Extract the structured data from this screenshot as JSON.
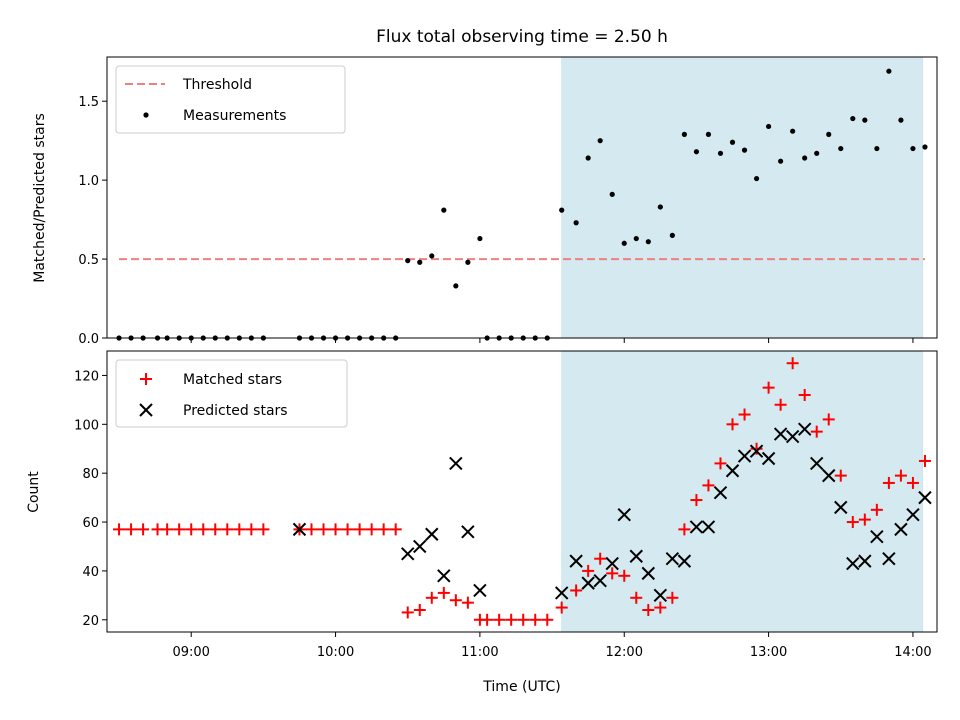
{
  "chart_data": [
    {
      "type": "scatter",
      "title": "Flux total observing time = 2.50 h",
      "xlabel": "",
      "ylabel": "Matched/Predicted stars",
      "xlim": [
        "08:25",
        "14:10"
      ],
      "ylim": [
        0,
        1.78
      ],
      "yticks": [
        0.0,
        0.5,
        1.0,
        1.5
      ],
      "ytick_labels": [
        "0.0",
        "0.5",
        "1.0",
        "1.5"
      ],
      "grid": false,
      "legend_position": "top-left",
      "shaded_region": {
        "x_start": "11:34",
        "x_end": "14:04",
        "color": "#d4eaf0"
      },
      "threshold": {
        "name": "Threshold",
        "value": 0.5,
        "x_start": "08:30",
        "x_end": "14:05",
        "color": "#f08080",
        "style": "dashed"
      },
      "series": [
        {
          "name": "Measurements",
          "color": "#000000",
          "marker": "dot",
          "points": [
            [
              "08:30",
              0
            ],
            [
              "08:35",
              0
            ],
            [
              "08:40",
              0
            ],
            [
              "08:46",
              0
            ],
            [
              "08:50",
              0
            ],
            [
              "08:55",
              0
            ],
            [
              "09:00",
              0
            ],
            [
              "09:05",
              0
            ],
            [
              "09:10",
              0
            ],
            [
              "09:15",
              0
            ],
            [
              "09:20",
              0
            ],
            [
              "09:25",
              0
            ],
            [
              "09:30",
              0
            ],
            [
              "09:45",
              0
            ],
            [
              "09:50",
              0
            ],
            [
              "09:55",
              0
            ],
            [
              "10:00",
              0
            ],
            [
              "10:05",
              0
            ],
            [
              "10:10",
              0
            ],
            [
              "10:15",
              0
            ],
            [
              "10:20",
              0
            ],
            [
              "10:25",
              0
            ],
            [
              "10:30",
              0.49
            ],
            [
              "10:35",
              0.48
            ],
            [
              "10:40",
              0.52
            ],
            [
              "10:45",
              0.81
            ],
            [
              "10:50",
              0.33
            ],
            [
              "10:55",
              0.48
            ],
            [
              "11:00",
              0.63
            ],
            [
              "11:03",
              0
            ],
            [
              "11:08",
              0
            ],
            [
              "11:13",
              0
            ],
            [
              "11:18",
              0
            ],
            [
              "11:23",
              0
            ],
            [
              "11:28",
              0
            ],
            [
              "11:34",
              0.81
            ],
            [
              "11:40",
              0.73
            ],
            [
              "11:45",
              1.14
            ],
            [
              "11:50",
              1.25
            ],
            [
              "11:55",
              0.91
            ],
            [
              "12:00",
              0.6
            ],
            [
              "12:05",
              0.63
            ],
            [
              "12:10",
              0.61
            ],
            [
              "12:15",
              0.83
            ],
            [
              "12:20",
              0.65
            ],
            [
              "12:25",
              1.29
            ],
            [
              "12:30",
              1.18
            ],
            [
              "12:35",
              1.29
            ],
            [
              "12:40",
              1.17
            ],
            [
              "12:45",
              1.24
            ],
            [
              "12:50",
              1.19
            ],
            [
              "12:55",
              1.01
            ],
            [
              "13:00",
              1.34
            ],
            [
              "13:05",
              1.12
            ],
            [
              "13:10",
              1.31
            ],
            [
              "13:15",
              1.14
            ],
            [
              "13:20",
              1.17
            ],
            [
              "13:25",
              1.29
            ],
            [
              "13:30",
              1.2
            ],
            [
              "13:35",
              1.39
            ],
            [
              "13:40",
              1.38
            ],
            [
              "13:45",
              1.2
            ],
            [
              "13:50",
              1.69
            ],
            [
              "13:55",
              1.38
            ],
            [
              "14:00",
              1.2
            ],
            [
              "14:05",
              1.21
            ]
          ]
        }
      ]
    },
    {
      "type": "scatter",
      "title": "",
      "xlabel": "Time (UTC)",
      "ylabel": "Count",
      "xlim": [
        "08:25",
        "14:10"
      ],
      "ylim": [
        15,
        130
      ],
      "yticks": [
        20,
        40,
        60,
        80,
        100,
        120
      ],
      "ytick_labels": [
        "20",
        "40",
        "60",
        "80",
        "100",
        "120"
      ],
      "xticks": [
        "09:00",
        "10:00",
        "11:00",
        "12:00",
        "13:00",
        "14:00"
      ],
      "xtick_labels": [
        "09:00",
        "10:00",
        "11:00",
        "12:00",
        "13:00",
        "14:00"
      ],
      "grid": false,
      "legend_position": "top-left",
      "shaded_region": {
        "x_start": "11:34",
        "x_end": "14:04",
        "color": "#d4eaf0"
      },
      "series": [
        {
          "name": "Matched stars",
          "color": "#ff0000",
          "marker": "plus",
          "points": [
            [
              "08:30",
              57
            ],
            [
              "08:35",
              57
            ],
            [
              "08:40",
              57
            ],
            [
              "08:46",
              57
            ],
            [
              "08:50",
              57
            ],
            [
              "08:55",
              57
            ],
            [
              "09:00",
              57
            ],
            [
              "09:05",
              57
            ],
            [
              "09:10",
              57
            ],
            [
              "09:15",
              57
            ],
            [
              "09:20",
              57
            ],
            [
              "09:25",
              57
            ],
            [
              "09:30",
              57
            ],
            [
              "09:45",
              57
            ],
            [
              "09:50",
              57
            ],
            [
              "09:55",
              57
            ],
            [
              "10:00",
              57
            ],
            [
              "10:05",
              57
            ],
            [
              "10:10",
              57
            ],
            [
              "10:15",
              57
            ],
            [
              "10:20",
              57
            ],
            [
              "10:25",
              57
            ],
            [
              "10:30",
              23
            ],
            [
              "10:35",
              24
            ],
            [
              "10:40",
              29
            ],
            [
              "10:45",
              31
            ],
            [
              "10:50",
              28
            ],
            [
              "10:55",
              27
            ],
            [
              "11:00",
              20
            ],
            [
              "11:03",
              20
            ],
            [
              "11:08",
              20
            ],
            [
              "11:13",
              20
            ],
            [
              "11:18",
              20
            ],
            [
              "11:23",
              20
            ],
            [
              "11:28",
              20
            ],
            [
              "11:34",
              25
            ],
            [
              "11:40",
              32
            ],
            [
              "11:45",
              40
            ],
            [
              "11:50",
              45
            ],
            [
              "11:55",
              39
            ],
            [
              "12:00",
              38
            ],
            [
              "12:05",
              29
            ],
            [
              "12:10",
              24
            ],
            [
              "12:15",
              25
            ],
            [
              "12:20",
              29
            ],
            [
              "12:25",
              57
            ],
            [
              "12:30",
              69
            ],
            [
              "12:35",
              75
            ],
            [
              "12:40",
              84
            ],
            [
              "12:45",
              100
            ],
            [
              "12:50",
              104
            ],
            [
              "12:55",
              90
            ],
            [
              "13:00",
              115
            ],
            [
              "13:05",
              108
            ],
            [
              "13:10",
              125
            ],
            [
              "13:15",
              112
            ],
            [
              "13:20",
              97
            ],
            [
              "13:25",
              102
            ],
            [
              "13:30",
              79
            ],
            [
              "13:35",
              60
            ],
            [
              "13:40",
              61
            ],
            [
              "13:45",
              65
            ],
            [
              "13:50",
              76
            ],
            [
              "13:55",
              79
            ],
            [
              "14:00",
              76
            ],
            [
              "14:05",
              85
            ]
          ]
        },
        {
          "name": "Predicted stars",
          "color": "#000000",
          "marker": "x",
          "points": [
            [
              "09:45",
              57
            ],
            [
              "10:30",
              47
            ],
            [
              "10:35",
              50
            ],
            [
              "10:40",
              55
            ],
            [
              "10:45",
              38
            ],
            [
              "10:50",
              84
            ],
            [
              "10:55",
              56
            ],
            [
              "11:00",
              32
            ],
            [
              "11:34",
              31
            ],
            [
              "11:40",
              44
            ],
            [
              "11:45",
              35
            ],
            [
              "11:50",
              36
            ],
            [
              "11:55",
              43
            ],
            [
              "12:00",
              63
            ],
            [
              "12:05",
              46
            ],
            [
              "12:10",
              39
            ],
            [
              "12:15",
              30
            ],
            [
              "12:20",
              45
            ],
            [
              "12:25",
              44
            ],
            [
              "12:30",
              58
            ],
            [
              "12:35",
              58
            ],
            [
              "12:40",
              72
            ],
            [
              "12:45",
              81
            ],
            [
              "12:50",
              87
            ],
            [
              "12:55",
              89
            ],
            [
              "13:00",
              86
            ],
            [
              "13:05",
              96
            ],
            [
              "13:10",
              95
            ],
            [
              "13:15",
              98
            ],
            [
              "13:20",
              84
            ],
            [
              "13:25",
              79
            ],
            [
              "13:30",
              66
            ],
            [
              "13:35",
              43
            ],
            [
              "13:40",
              44
            ],
            [
              "13:45",
              54
            ],
            [
              "13:50",
              45
            ],
            [
              "13:55",
              57
            ],
            [
              "14:00",
              63
            ],
            [
              "14:05",
              70
            ]
          ]
        }
      ]
    }
  ]
}
